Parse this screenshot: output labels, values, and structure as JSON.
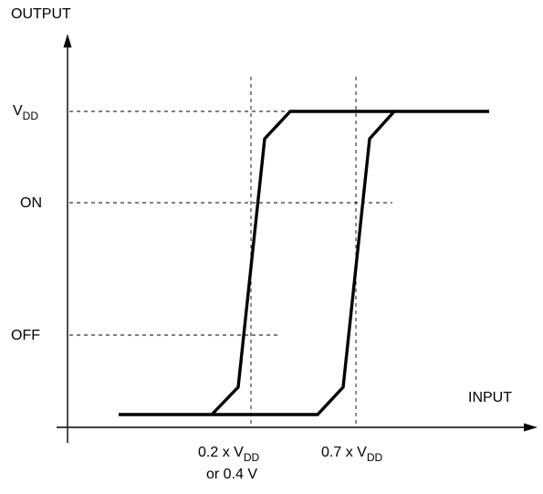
{
  "diagram": {
    "y_axis_label": "OUTPUT",
    "x_axis_label": "INPUT",
    "y_levels": {
      "vdd": {
        "main": "V",
        "sub": "DD"
      },
      "on": "ON",
      "off": "OFF"
    },
    "x_thresholds": {
      "low": {
        "prefix": "0.2 x V",
        "sub": "DD",
        "line2": "or 0.4 V"
      },
      "high": {
        "prefix": "0.7 x V",
        "sub": "DD"
      }
    }
  }
}
